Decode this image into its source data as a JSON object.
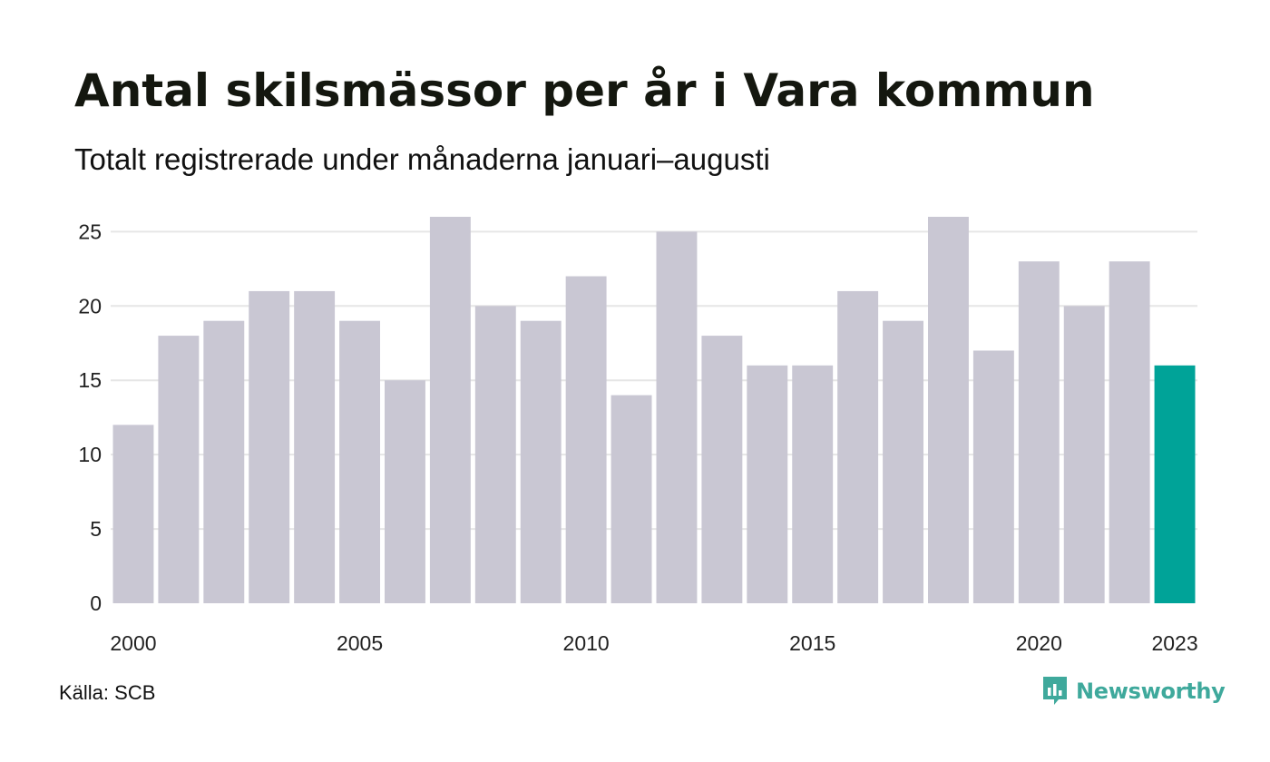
{
  "header": {
    "title": "Antal skilsmässor per år i Vara kommun",
    "subtitle": "Totalt registrerade under månaderna januari–augusti"
  },
  "footer": {
    "source": "Källa: SCB",
    "brand": "Newsworthy",
    "brand_icon": "newsworthy-logo-icon"
  },
  "colors": {
    "bar": "#c9c7d3",
    "highlight": "#00a398",
    "grid": "#e6e6e6",
    "brand": "#3fa99c"
  },
  "chart_data": {
    "type": "bar",
    "title": "Antal skilsmässor per år i Vara kommun",
    "subtitle": "Totalt registrerade under månaderna januari–augusti",
    "xlabel": "",
    "ylabel": "",
    "categories": [
      2000,
      2001,
      2002,
      2003,
      2004,
      2005,
      2006,
      2007,
      2008,
      2009,
      2010,
      2011,
      2012,
      2013,
      2014,
      2015,
      2016,
      2017,
      2018,
      2019,
      2020,
      2021,
      2022,
      2023
    ],
    "values": [
      12,
      18,
      19,
      21,
      21,
      19,
      15,
      26,
      20,
      19,
      22,
      14,
      25,
      18,
      16,
      16,
      21,
      19,
      26,
      17,
      23,
      20,
      23,
      16
    ],
    "highlight_category": 2023,
    "x_tick_labels": [
      "2000",
      "2005",
      "2010",
      "2015",
      "2020",
      "2023"
    ],
    "y_ticks": [
      0,
      5,
      10,
      15,
      20,
      25
    ],
    "ylim": [
      0,
      26
    ],
    "grid": "horizontal",
    "legend": "none"
  }
}
